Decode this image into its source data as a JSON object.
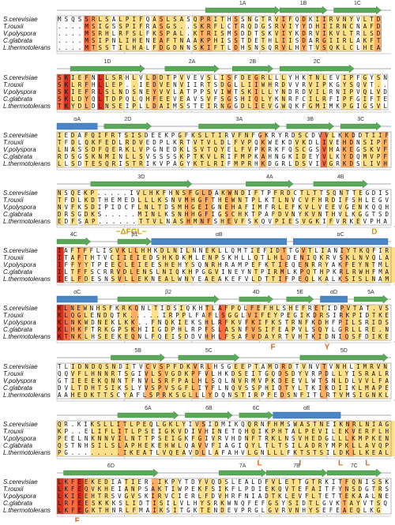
{
  "species": [
    "S.cerevisiae",
    "T.rouxii",
    "V.polyspora",
    "C.glabrata",
    "L.thermotolerans"
  ],
  "blocks": [
    {
      "ss": [
        "1A",
        "1B",
        "1C"
      ],
      "rows": [
        "MSQSSRLSALPIFQASLSASQPRITHSSNGTRVIFQDKIIRVNYVLTD",
        "....MSIGSSPIFRASGS..SKRFLCTRQDGSRVIYYDHIIRNCNAFD",
        "....MSRHLRFSLFKSPAL.KTRISMSDDTSKVIYKDRVIKVLTRLSD",
        "....MSIPNLIHENEAFTNAAKPHISSTDETHLIISDARGIIRLAKFT",
        "....MTSSTILHALFDGDNNSKIFTLDHSNSQRVLHYTVSQKLCLHEA"
      ],
      "annotations": []
    },
    {
      "ss": [
        "1D",
        "2A",
        "2B",
        "2C"
      ],
      "rows": [
        "SKIEFNLLSRHLVLDDTPVVEVSLISFDEGRLLLYHKTNLEVIPFGYSN",
        "SKLRFHLLEP..IEDVENVIIRTSDGLLIIWHRDVVRVIPKGYSQVT..",
        "SKIEFRLSLNDSNEYVVLATPPSVIWTSKILLYNDRDVILRNIPVQLVD",
        "SKLDYQLTDPQLQHFEEVEAVSVFSGSHIQLYKNRFCILRFIPFGIFTE",
        "TKYDLDLNSEIPLLDAIMSSTEIRNGGDLIEVGWQKFGMIMKPGIGSVL"
      ],
      "annotations": []
    },
    {
      "ss": [
        "αA",
        "2D",
        "3A",
        "3B",
        "3C"
      ],
      "rows": [
        "IEDAFQIFRTSISDEEKPGFKSLTIRVFNFGKRYRDSCDVVLKKDDTIIF",
        "TFDLQKFEDLRDVEDPLKRTVTVLDLFVPQKWEKDVKDLIVEHDNSIPF",
        "LNASSDFQERKLVPGNEDKLSVTQYELFVPKRKFQSCGSVHAKEGSKVF",
        "RDSGSKNMINLLSVSSSSKPTKVLRIFMPKAHNGKIDEYVLKYDQMVPF",
        "LLSDTESQRISTRIKVPAGYKTLRIFMPRHKDGRLDSVIVGRKDSLIVH"
      ],
      "annotations": []
    },
    {
      "ss": [
        "3D",
        "4A",
        "4B"
      ],
      "rows": [
        "NSQEKP.....IVLHKFHNSFGLDAKWNDIFTPFRDCTLTTSQNTTEGDIS",
        "TFDLKDTHEMEDLLLKSNVMHGFTHEWNTPLKTLNVCVFHRDIFSHLEGV",
        "NVFKSDIPIDCFLNLTDSMHGEIGNEHAFIMFRLEFKVLVEEVGENKQQH",
        "DRSGDKS.....MINLKSNHHGFIGSCHKTPAFDVNYKVNTHVLKGGTSD",
        "EDFSAP......TTVLNASHMNFSHEVFSKQVPIESVGKIFVRKEVPHA"
      ],
      "annotations": [
        "−ΔFGL−",
        "D"
      ]
    },
    {
      "ss": [
        "4C",
        "β1",
        "αB",
        "αC"
      ],
      "rows": [
        "IAFTFFLISVKLLHHKDLNILNNEKLLQMTIEFIDTTGVTLIANIYTKQFIR",
        "ITAFTHTVCIIEIEDSHKDKMLENPSKHLLQTLHLDENIQKRVSKLNVQLA",
        "IFFYYTPEECLEIEESHEHYSQNRHRAMPEFKTIEQENRRYAKFEYNTML",
        "ILTFFSCRRVDLENSLNIQKHPGGVINEYNTPIRMLKPQTHPKRLRWHFMA",
        "IELFDESNSVLLEKNEALWNYEAEAKEFVLDTTIFPEQLKALKSISLNAM"
      ],
      "annotations": []
    },
    {
      "ss": [
        "αC",
        "β2",
        "4D",
        "5E",
        "αD",
        "5A"
      ],
      "rows": [
        "KLNEWNHSFKRKQNLTIDSIQKHTLAFPQLFEFHLSHEFRETIDPVTAT.VS",
        "KLQGLENDQTK.....IRPPLFAFLSGGLVIFEYPEGIKDRSIRKPIDTKE",
        "KLNKWDNEKLKK..FNQKIEKSHLRFKVFKIFKSTRNFKDHFPILSRIDS",
        "KLHKFTRKGPSKHIIGDPHLRPFSLASNFVSIFEAPVLSQYLGRLLRE.N",
        "KTNKLHSEEKEQNLFQEISDDVHHLFSAFVDAYRTVHTKIDNIQSFDIKE"
      ],
      "annotations": [
        "F",
        "Y"
      ]
    },
    {
      "ss": [
        "5B",
        "5C",
        "5D"
      ],
      "rows": [
        "TLIDNDQSNDITVCVSPFDKVRLHSGEEPTAMDRDTVNVTVNHLIMRVN",
        "QQVFLHNNRTSGIVLSVGDKPFVLHKDSEITGQDSDYVRPDLLYISRALR",
        "GTIEEEKQNNTFNVLSRFPALHLSQLNVRMVPKDEEVLWTSNLDLVVLFA",
        "DVLTDHTSIKSLYVSPVSGFLIYFLNQVSSPHIDTYLTKIKDIIKLMAPE",
        "AAHEDKTTSCYAFLSPRKSGLLLYDQNSTIRPFEDSNFITLRTVMSIGNKL"
      ],
      "annotations": []
    },
    {
      "ss": [
        "6A",
        "6B",
        "6C",
        "αE"
      ],
      "rows": [
        "QR.KIKSLLITLPEQLGKLYIVSIDMIKQQRNFHMSWASTNEIKNRLNIAG",
        "KP..ELIFLITLPSEIGKVDIVHINETQHQIKPHTALPEVILEKVERFLH",
        "PEELNKNNVILNTTPSEIGKFGIVRVHDNFTRKLNSVHEDGLLLKMPKEN",
        "QSTNHSILSLAPHEKEHWLQAVVFIAGIQYLTLTSILADRYMPKLLAVQP",
        "PG........IKEATLVQEAVDLLAFAHVLGNLLLFKTSTSILDKLLKEAL"
      ],
      "annotations": [
        "L",
        "I",
        "L",
        "L"
      ]
    },
    {
      "ss": [
        "6D",
        "7A",
        "7B",
        "7C"
      ],
      "rows": [
        "LKFEEKEDIATIER.IKPYTDYVQDSLEALDFVLETTGTRKITFQNISSK",
        "LKFEQVKHEIANPSAKTIWPEKFSIKFLPDIEKQVTEFAITFYNSDGTRS",
        "LKIEEHTRSVGVSKIRVCIERLFDVHRFNIADTKLEVFLTETTEKAALNE",
        "LRFEESKKKSLIDTISILVLHYSRKWNQFEFGSYSIDTLGVKTAYVTSQ",
        "LKFEGKTHNRLFMAIKSITGKTENDEVPRGLGVRVNHYSEFEAEQLKG"
      ],
      "annotations": [
        "F"
      ]
    }
  ]
}
